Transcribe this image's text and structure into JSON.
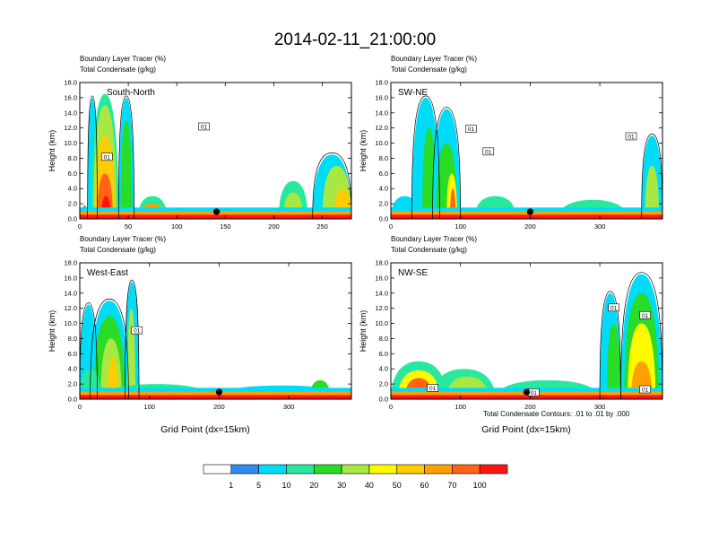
{
  "title": "2014-02-11_21:00:00",
  "colors": [
    "#ffffff",
    "#2a8cf0",
    "#00dcf8",
    "#28e8a0",
    "#28dc28",
    "#a8e840",
    "#fffa00",
    "#ffcc00",
    "#ffa000",
    "#ff6414",
    "#ff1414"
  ],
  "colorbar": {
    "labels": [
      "1",
      "5",
      "10",
      "20",
      "30",
      "40",
      "50",
      "60",
      "70",
      "100"
    ]
  },
  "ylabel": "Height (km)",
  "xlabel": "Grid Point (dx=15km)",
  "contour_note": "Total Condensate Contours: .01 to .01 by .000",
  "chart_data": [
    {
      "type": "heatmap",
      "name": "South-North",
      "label": "South-North",
      "subtitle1": "Boundary Layer Tracer   (%)",
      "subtitle2": "Total Condensate   (g/kg)",
      "xlim": [
        0,
        280
      ],
      "ylim": [
        0,
        18
      ],
      "xticks": [
        "0",
        "50",
        "100",
        "150",
        "200",
        "250"
      ],
      "yticks": [
        "0.0",
        "2.0",
        "4.0",
        "6.0",
        "8.0",
        "10.0",
        "12.0",
        "14.0",
        "16.0",
        "18.0"
      ],
      "marker_x": 141,
      "contour_labels": [
        {
          "text": "01",
          "x": 128,
          "y": 12.2
        },
        {
          "text": "01",
          "x": 28,
          "y": 8.2
        }
      ],
      "columns": [
        {
          "x": [
            2,
            8
          ],
          "top": 1.8,
          "level": 4
        },
        {
          "x": [
            8,
            18
          ],
          "top": 16,
          "level": 2
        },
        {
          "x": [
            12,
            40
          ],
          "top": 16.5,
          "level": 3
        },
        {
          "x": [
            14,
            38
          ],
          "top": 15,
          "level": 5
        },
        {
          "x": [
            16,
            36
          ],
          "top": 11,
          "level": 7
        },
        {
          "x": [
            18,
            34
          ],
          "top": 6,
          "level": 9
        },
        {
          "x": [
            22,
            32
          ],
          "top": 3,
          "level": 10
        },
        {
          "x": [
            40,
            56
          ],
          "top": 16,
          "level": 2
        },
        {
          "x": [
            42,
            54
          ],
          "top": 13,
          "level": 4
        },
        {
          "x": [
            60,
            90
          ],
          "top": 3,
          "level": 3
        },
        {
          "x": [
            62,
            88
          ],
          "top": 2,
          "level": 8
        },
        {
          "x": [
            205,
            235
          ],
          "top": 5,
          "level": 3
        },
        {
          "x": [
            210,
            230
          ],
          "top": 3.5,
          "level": 5
        },
        {
          "x": [
            240,
            280
          ],
          "top": 8.5,
          "level": 2
        },
        {
          "x": [
            250,
            280
          ],
          "top": 7,
          "level": 5
        },
        {
          "x": [
            262,
            280
          ],
          "top": 4,
          "level": 7
        }
      ]
    },
    {
      "type": "heatmap",
      "name": "SW-NE",
      "label": "SW-NE",
      "subtitle1": "Boundary Layer Tracer   (%)",
      "subtitle2": "Total Condensate   (g/kg)",
      "xlim": [
        0,
        390
      ],
      "ylim": [
        0,
        18
      ],
      "xticks": [
        "0",
        "100",
        "200",
        "300"
      ],
      "yticks": [
        "0.0",
        "2.0",
        "4.0",
        "6.0",
        "8.0",
        "10.0",
        "12.0",
        "14.0",
        "16.0",
        "18.0"
      ],
      "marker_x": 200,
      "contour_labels": [
        {
          "text": "01",
          "x": 115,
          "y": 11.9
        },
        {
          "text": "01",
          "x": 140,
          "y": 8.9
        },
        {
          "text": "01",
          "x": 345,
          "y": 10.9
        }
      ],
      "columns": [
        {
          "x": [
            0,
            40
          ],
          "top": 3,
          "level": 2
        },
        {
          "x": [
            30,
            70
          ],
          "top": 16,
          "level": 2
        },
        {
          "x": [
            45,
            65
          ],
          "top": 12,
          "level": 4
        },
        {
          "x": [
            60,
            100
          ],
          "top": 14.5,
          "level": 2
        },
        {
          "x": [
            65,
            95
          ],
          "top": 10,
          "level": 4
        },
        {
          "x": [
            80,
            95
          ],
          "top": 6,
          "level": 6
        },
        {
          "x": [
            85,
            93
          ],
          "top": 4,
          "level": 9
        },
        {
          "x": [
            120,
            180
          ],
          "top": 3,
          "level": 3
        },
        {
          "x": [
            240,
            340
          ],
          "top": 2.5,
          "level": 3
        },
        {
          "x": [
            360,
            390
          ],
          "top": 11,
          "level": 2
        },
        {
          "x": [
            365,
            385
          ],
          "top": 7,
          "level": 5
        }
      ]
    },
    {
      "type": "heatmap",
      "name": "West-East",
      "label": "West-East",
      "subtitle1": "Boundary Layer Tracer   (%)",
      "subtitle2": "Total Condensate   (g/kg)",
      "xlim": [
        0,
        390
      ],
      "ylim": [
        0,
        18
      ],
      "xticks": [
        "0",
        "100",
        "200",
        "300"
      ],
      "yticks": [
        "0.0",
        "2.0",
        "4.0",
        "6.0",
        "8.0",
        "10.0",
        "12.0",
        "14.0",
        "16.0",
        "18.0"
      ],
      "marker_x": 200,
      "contour_labels": [
        {
          "text": "01",
          "x": 82,
          "y": 9.1
        }
      ],
      "columns": [
        {
          "x": [
            0,
            25
          ],
          "top": 12.5,
          "level": 2
        },
        {
          "x": [
            15,
            70
          ],
          "top": 13,
          "level": 2
        },
        {
          "x": [
            20,
            65
          ],
          "top": 11,
          "level": 4
        },
        {
          "x": [
            30,
            60
          ],
          "top": 8,
          "level": 5
        },
        {
          "x": [
            40,
            55
          ],
          "top": 5.5,
          "level": 7
        },
        {
          "x": [
            65,
            85
          ],
          "top": 15.5,
          "level": 2
        },
        {
          "x": [
            68,
            80
          ],
          "top": 12,
          "level": 5
        },
        {
          "x": [
            0,
            30
          ],
          "top": 4,
          "level": 3
        },
        {
          "x": [
            30,
            190
          ],
          "top": 2,
          "level": 3
        },
        {
          "x": [
            190,
            390
          ],
          "top": 1.8,
          "level": 2
        },
        {
          "x": [
            330,
            360
          ],
          "top": 2.5,
          "level": 4
        }
      ]
    },
    {
      "type": "heatmap",
      "name": "NW-SE",
      "label": "NW-SE",
      "subtitle1": "Boundary Layer Tracer   (%)",
      "subtitle2": "Total Condensate   (g/kg)",
      "xlim": [
        0,
        390
      ],
      "ylim": [
        0,
        18
      ],
      "xticks": [
        "0",
        "100",
        "200",
        "300"
      ],
      "yticks": [
        "0.0",
        "2.0",
        "4.0",
        "6.0",
        "8.0",
        "10.0",
        "12.0",
        "14.0",
        "16.0",
        "18.0"
      ],
      "marker_x": 195,
      "contour_labels": [
        {
          "text": "01",
          "x": 320,
          "y": 12.1
        },
        {
          "text": "01",
          "x": 365,
          "y": 11.1
        },
        {
          "text": "01",
          "x": 365,
          "y": 1.3
        },
        {
          "text": "01",
          "x": 60,
          "y": 1.5
        },
        {
          "text": "01",
          "x": 205,
          "y": 0.9
        }
      ],
      "columns": [
        {
          "x": [
            0,
            80
          ],
          "top": 5,
          "level": 3
        },
        {
          "x": [
            10,
            70
          ],
          "top": 3.8,
          "level": 6
        },
        {
          "x": [
            20,
            60
          ],
          "top": 2.8,
          "level": 9
        },
        {
          "x": [
            60,
            150
          ],
          "top": 4,
          "level": 3
        },
        {
          "x": [
            80,
            140
          ],
          "top": 3,
          "level": 5
        },
        {
          "x": [
            150,
            300
          ],
          "top": 2.5,
          "level": 3
        },
        {
          "x": [
            300,
            330
          ],
          "top": 14,
          "level": 2
        },
        {
          "x": [
            310,
            330
          ],
          "top": 10,
          "level": 4
        },
        {
          "x": [
            330,
            390
          ],
          "top": 16.5,
          "level": 2
        },
        {
          "x": [
            335,
            385
          ],
          "top": 14,
          "level": 4
        },
        {
          "x": [
            340,
            380
          ],
          "top": 10,
          "level": 6
        },
        {
          "x": [
            345,
            375
          ],
          "top": 5,
          "level": 8
        }
      ]
    }
  ]
}
